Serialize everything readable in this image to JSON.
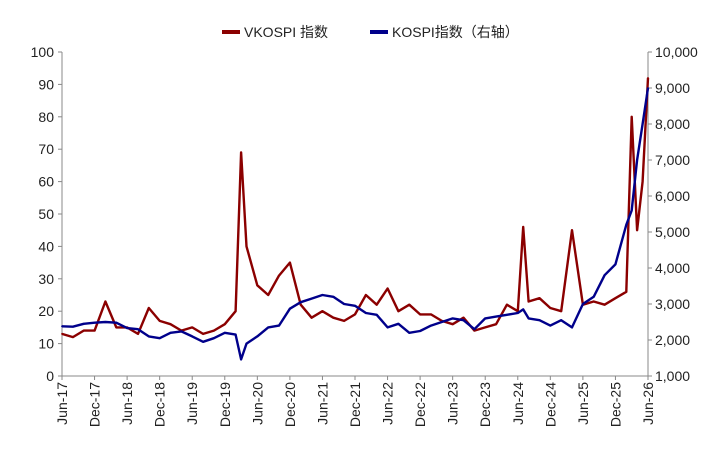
{
  "chart_data": {
    "type": "line",
    "title": "",
    "xlabel": "",
    "ylabel": "",
    "legend_position": "top-center",
    "grid": false,
    "colors": {
      "vkospi": "#8B0000",
      "kospi": "#00008B"
    },
    "x_tick_labels": [
      "Jun-17",
      "Dec-17",
      "Jun-18",
      "Dec-18",
      "Jun-19",
      "Dec-19",
      "Jun-20",
      "Dec-20",
      "Jun-21",
      "Dec-21",
      "Jun-22",
      "Dec-22",
      "Jun-23",
      "Dec-23",
      "Jun-24",
      "Dec-24",
      "Jun-25",
      "Dec-25",
      "Jun-26"
    ],
    "y_left_ticks": [
      "0",
      "10",
      "20",
      "30",
      "40",
      "50",
      "60",
      "70",
      "80",
      "90",
      "100"
    ],
    "y_right_ticks": [
      "1,000",
      "2,000",
      "3,000",
      "4,000",
      "5,000",
      "6,000",
      "7,000",
      "8,000",
      "9,000",
      "10,000"
    ],
    "y_left_range": [
      0,
      100
    ],
    "y_right_range": [
      1000,
      10000
    ],
    "series": [
      {
        "name": "VKOSPI 指数",
        "axis": "left",
        "x": [
          "2017-06",
          "2017-08",
          "2017-10",
          "2017-12",
          "2018-02",
          "2018-04",
          "2018-06",
          "2018-08",
          "2018-10",
          "2018-12",
          "2019-02",
          "2019-04",
          "2019-06",
          "2019-08",
          "2019-10",
          "2019-12",
          "2020-02",
          "2020-03",
          "2020-04",
          "2020-06",
          "2020-08",
          "2020-10",
          "2020-12",
          "2021-02",
          "2021-04",
          "2021-06",
          "2021-08",
          "2021-10",
          "2021-12",
          "2022-02",
          "2022-04",
          "2022-06",
          "2022-08",
          "2022-10",
          "2022-12",
          "2023-02",
          "2023-04",
          "2023-06",
          "2023-08",
          "2023-10",
          "2023-12",
          "2024-02",
          "2024-04",
          "2024-06",
          "2024-07",
          "2024-08",
          "2024-10",
          "2024-12",
          "2025-02",
          "2025-04",
          "2025-06",
          "2025-08",
          "2025-10",
          "2025-12",
          "2026-02",
          "2026-03",
          "2026-04",
          "2026-05",
          "2026-06"
        ],
        "values": [
          13,
          12,
          14,
          14,
          23,
          15,
          15,
          13,
          21,
          17,
          16,
          14,
          15,
          13,
          14,
          16,
          20,
          69,
          40,
          28,
          25,
          31,
          35,
          22,
          18,
          20,
          18,
          17,
          19,
          25,
          22,
          27,
          20,
          22,
          19,
          19,
          17,
          16,
          18,
          14,
          15,
          16,
          22,
          20,
          46,
          23,
          24,
          21,
          20,
          45,
          22,
          23,
          22,
          24,
          26,
          80,
          45,
          60,
          92
        ]
      },
      {
        "name": "KOSPI指数（右轴）",
        "axis": "right",
        "x": [
          "2017-06",
          "2017-08",
          "2017-10",
          "2017-12",
          "2018-02",
          "2018-04",
          "2018-06",
          "2018-08",
          "2018-10",
          "2018-12",
          "2019-02",
          "2019-04",
          "2019-06",
          "2019-08",
          "2019-10",
          "2019-12",
          "2020-02",
          "2020-03",
          "2020-04",
          "2020-06",
          "2020-08",
          "2020-10",
          "2020-12",
          "2021-02",
          "2021-04",
          "2021-06",
          "2021-08",
          "2021-10",
          "2021-12",
          "2022-02",
          "2022-04",
          "2022-06",
          "2022-08",
          "2022-10",
          "2022-12",
          "2023-02",
          "2023-04",
          "2023-06",
          "2023-08",
          "2023-10",
          "2023-12",
          "2024-02",
          "2024-04",
          "2024-06",
          "2024-07",
          "2024-08",
          "2024-10",
          "2024-12",
          "2025-02",
          "2025-04",
          "2025-06",
          "2025-08",
          "2025-10",
          "2025-12",
          "2026-02",
          "2026-03",
          "2026-04",
          "2026-05",
          "2026-06"
        ],
        "values": [
          2380,
          2370,
          2450,
          2480,
          2500,
          2480,
          2330,
          2300,
          2100,
          2050,
          2200,
          2240,
          2100,
          1950,
          2050,
          2200,
          2150,
          1460,
          1900,
          2100,
          2350,
          2400,
          2870,
          3050,
          3150,
          3250,
          3200,
          3000,
          2950,
          2750,
          2700,
          2350,
          2450,
          2200,
          2250,
          2400,
          2500,
          2600,
          2550,
          2300,
          2600,
          2650,
          2700,
          2750,
          2850,
          2600,
          2550,
          2400,
          2550,
          2350,
          3000,
          3200,
          3800,
          4100,
          5200,
          5600,
          7000,
          8000,
          9000
        ]
      }
    ]
  }
}
